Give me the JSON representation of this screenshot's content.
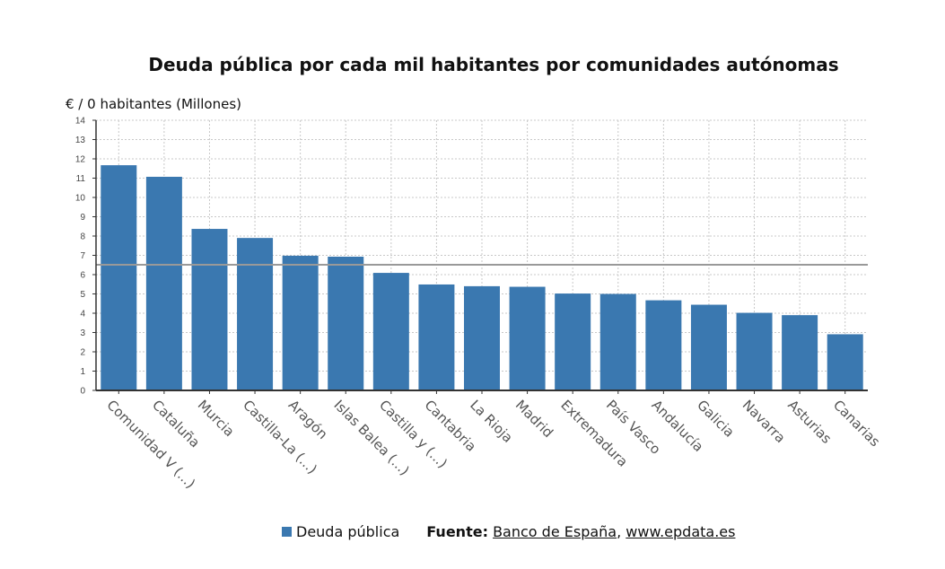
{
  "chart_data": {
    "type": "bar",
    "title": "Deuda pública por cada mil habitantes por comunidades autónomas",
    "ylabel": "€ / 0 habitantes (Millones)",
    "xlabel": "",
    "ylim": [
      0,
      14
    ],
    "yticks": [
      "0",
      "1",
      "2",
      "3",
      "4",
      "5",
      "6",
      "7",
      "8",
      "9",
      "10",
      "11",
      "12",
      "13",
      "14"
    ],
    "grid": true,
    "categories": [
      "Comunidad V (...)",
      "Cataluña",
      "Murcia",
      "Castilla-La (...)",
      "Aragón",
      "Islas Balea (...)",
      "Castilla y (...)",
      "Cantabria",
      "La Rioja",
      "Madrid",
      "Extremadura",
      "País Vasco",
      "Andalucía",
      "Galicia",
      "Navarra",
      "Asturias",
      "Canarias"
    ],
    "series": [
      {
        "name": "Deuda pública",
        "values": [
          11.67,
          11.07,
          8.37,
          7.9,
          6.98,
          6.93,
          6.09,
          5.49,
          5.4,
          5.37,
          5.02,
          5.0,
          4.67,
          4.44,
          4.02,
          3.9,
          2.91
        ]
      }
    ],
    "reference_line": 6.51,
    "legend_position": "bottom",
    "colors": {
      "bar": "#3a78b0",
      "reference_line": "#999999",
      "grid": "#c8c8c8"
    }
  },
  "footer": {
    "source_label": "Fuente:",
    "source_name": "Banco de España",
    "separator": ",",
    "source_site": "www.epdata.es"
  }
}
